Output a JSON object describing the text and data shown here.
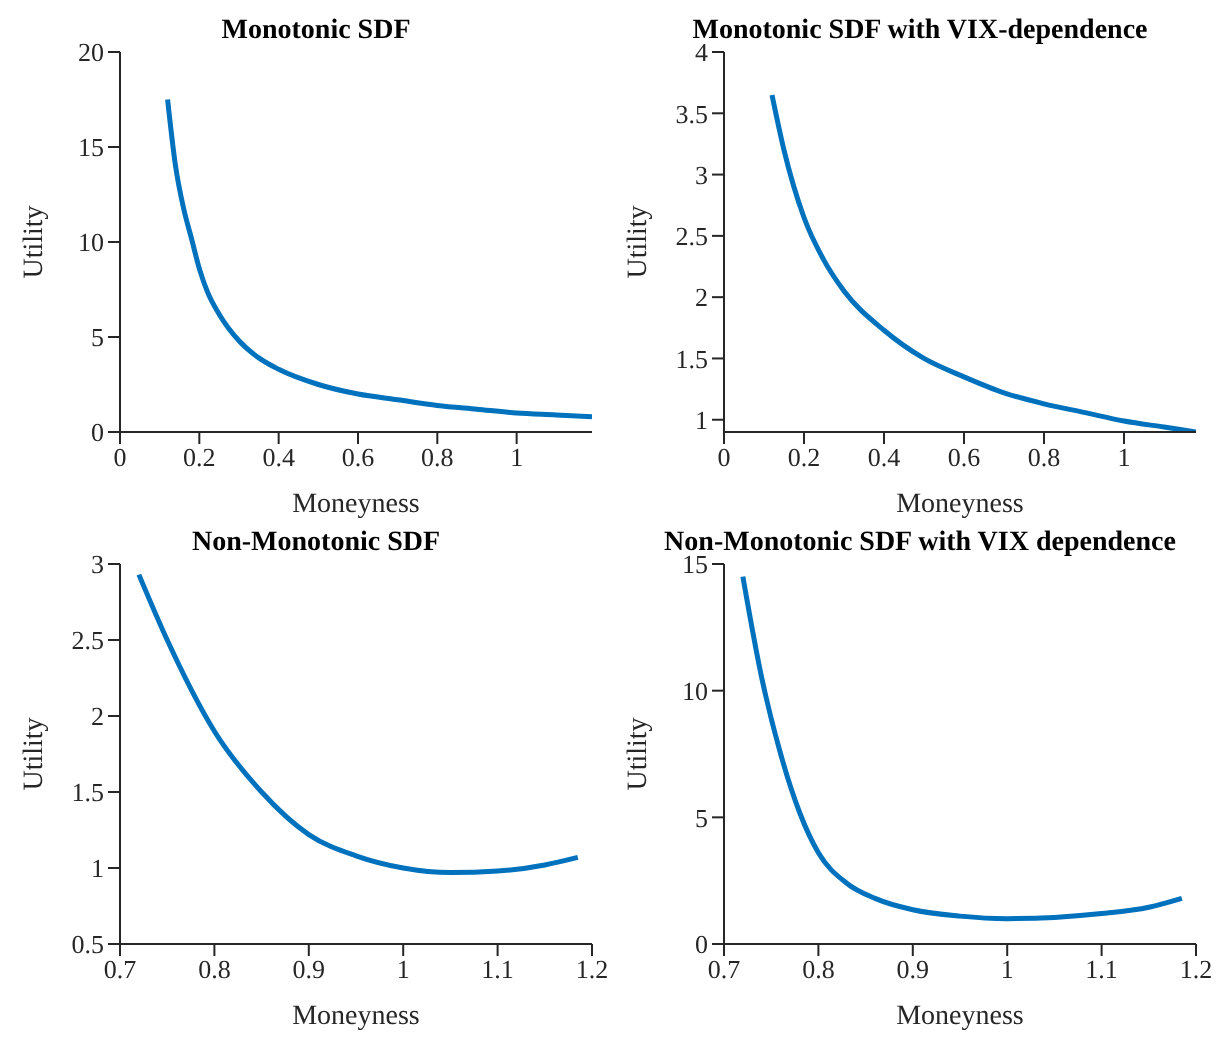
{
  "chart_data": [
    {
      "type": "line",
      "title": "Monotonic SDF",
      "xlabel": "Moneyness",
      "ylabel": "Utility",
      "x": [
        0.12,
        0.14,
        0.16,
        0.18,
        0.2,
        0.22,
        0.25,
        0.3,
        0.35,
        0.4,
        0.5,
        0.6,
        0.7,
        0.8,
        0.9,
        1.0,
        1.1,
        1.19
      ],
      "series": [
        {
          "color": "#0072bd",
          "values": [
            17.5,
            14,
            11.8,
            10.2,
            8.6,
            7.4,
            6.2,
            4.8,
            3.9,
            3.3,
            2.5,
            2.0,
            1.7,
            1.4,
            1.2,
            1.0,
            0.9,
            0.8
          ]
        }
      ],
      "xlim": [
        0,
        1.19
      ],
      "xticks": [
        0,
        0.2,
        0.4,
        0.6,
        0.8,
        1
      ],
      "ylim": [
        0,
        20
      ],
      "yticks": [
        0,
        5,
        10,
        15,
        20
      ],
      "grid": false,
      "legend": false,
      "marker": "none",
      "line_style": "solid"
    },
    {
      "type": "line",
      "title": "Monotonic SDF with VIX-dependence",
      "xlabel": "Moneyness",
      "ylabel": "Utility",
      "x": [
        0.12,
        0.15,
        0.2,
        0.25,
        0.3,
        0.4,
        0.5,
        0.6,
        0.7,
        0.8,
        0.9,
        1.0,
        1.1,
        1.18
      ],
      "series": [
        {
          "color": "#0072bd",
          "values": [
            3.65,
            3.2,
            2.65,
            2.3,
            2.05,
            1.73,
            1.5,
            1.35,
            1.22,
            1.13,
            1.06,
            0.99,
            0.94,
            0.9
          ]
        }
      ],
      "xlim": [
        0,
        1.18
      ],
      "xticks": [
        0,
        0.2,
        0.4,
        0.6,
        0.8,
        1
      ],
      "ylim": [
        0.9,
        4
      ],
      "yticks": [
        1,
        1.5,
        2,
        2.5,
        3,
        3.5,
        4
      ],
      "grid": false,
      "legend": false,
      "marker": "none",
      "line_style": "solid"
    },
    {
      "type": "line",
      "title": "Non-Monotonic SDF",
      "xlabel": "Moneyness",
      "ylabel": "Utility",
      "x": [
        0.72,
        0.75,
        0.8,
        0.85,
        0.9,
        0.95,
        1.0,
        1.05,
        1.1,
        1.15,
        1.185
      ],
      "series": [
        {
          "color": "#0072bd",
          "values": [
            2.93,
            2.5,
            1.9,
            1.5,
            1.22,
            1.08,
            1.0,
            0.97,
            0.98,
            1.02,
            1.07
          ]
        }
      ],
      "xlim": [
        0.7,
        1.2
      ],
      "xticks": [
        0.7,
        0.8,
        0.9,
        1,
        1.1,
        1.2
      ],
      "ylim": [
        0.5,
        3
      ],
      "yticks": [
        0.5,
        1,
        1.5,
        2,
        2.5,
        3
      ],
      "grid": false,
      "legend": false,
      "marker": "none",
      "line_style": "solid"
    },
    {
      "type": "line",
      "title": "Non-Monotonic SDF with VIX dependence",
      "xlabel": "Moneyness",
      "ylabel": "Utility",
      "x": [
        0.72,
        0.74,
        0.76,
        0.78,
        0.8,
        0.83,
        0.86,
        0.9,
        0.95,
        1.0,
        1.05,
        1.1,
        1.15,
        1.185
      ],
      "series": [
        {
          "color": "#0072bd",
          "values": [
            14.5,
            10.5,
            7.5,
            5.2,
            3.6,
            2.4,
            1.8,
            1.35,
            1.1,
            1.0,
            1.05,
            1.2,
            1.45,
            1.8
          ]
        }
      ],
      "xlim": [
        0.7,
        1.2
      ],
      "xticks": [
        0.7,
        0.8,
        0.9,
        1,
        1.1,
        1.2
      ],
      "ylim": [
        0,
        15
      ],
      "yticks": [
        0,
        5,
        10,
        15
      ],
      "grid": false,
      "legend": false,
      "marker": "none",
      "line_style": "solid"
    }
  ]
}
